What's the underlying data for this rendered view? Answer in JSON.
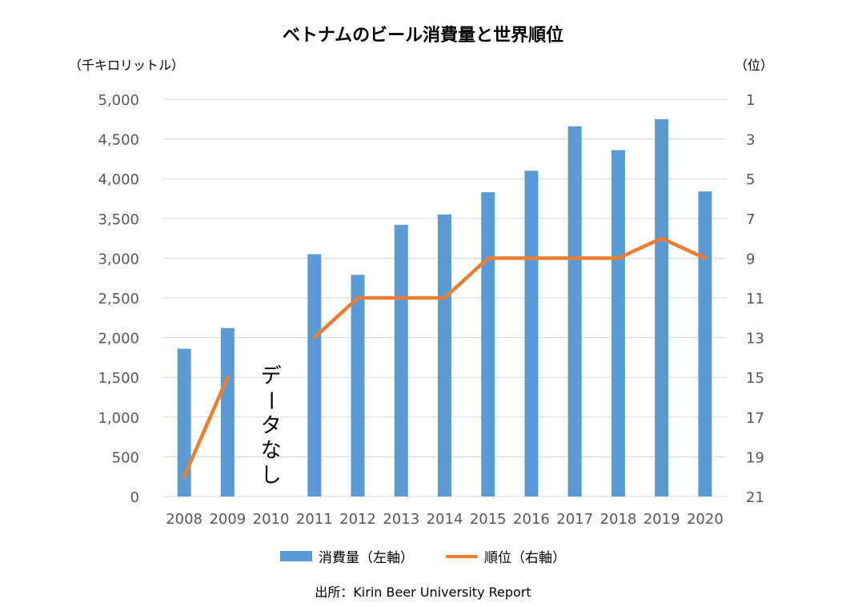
{
  "chart_data": {
    "type": "bar",
    "title": "ベトナムのビール消費量と世界順位",
    "y_left_unit": "（千キロリットル）",
    "y_right_unit": "（位）",
    "categories": [
      "2008",
      "2009",
      "2010",
      "2011",
      "2012",
      "2013",
      "2014",
      "2015",
      "2016",
      "2017",
      "2018",
      "2019",
      "2020"
    ],
    "series": [
      {
        "name": "消費量（左軸）",
        "type": "bar",
        "axis": "left",
        "color": "#5B9BD5",
        "values": [
          1860,
          2120,
          null,
          3050,
          2790,
          3420,
          3550,
          3830,
          4100,
          4660,
          4360,
          4750,
          3840
        ]
      },
      {
        "name": "順位（右軸）",
        "type": "line",
        "axis": "right",
        "color": "#ED7D31",
        "values": [
          20,
          15,
          null,
          13,
          11,
          11,
          11,
          9,
          9,
          9,
          9,
          8,
          9
        ]
      }
    ],
    "y_left": {
      "range": [
        0,
        5000
      ],
      "ticks": [
        "0",
        "500",
        "1,000",
        "1,500",
        "2,000",
        "2,500",
        "3,000",
        "3,500",
        "4,000",
        "4,500",
        "5,000"
      ]
    },
    "y_right": {
      "range": [
        21,
        1
      ],
      "inverted": true,
      "ticks": [
        "21",
        "19",
        "17",
        "15",
        "13",
        "11",
        "9",
        "7",
        "5",
        "3",
        "1"
      ]
    },
    "annotation": "データなし",
    "grid": true,
    "legend_position": "bottom",
    "source": "出所：Kirin Beer University Report"
  }
}
